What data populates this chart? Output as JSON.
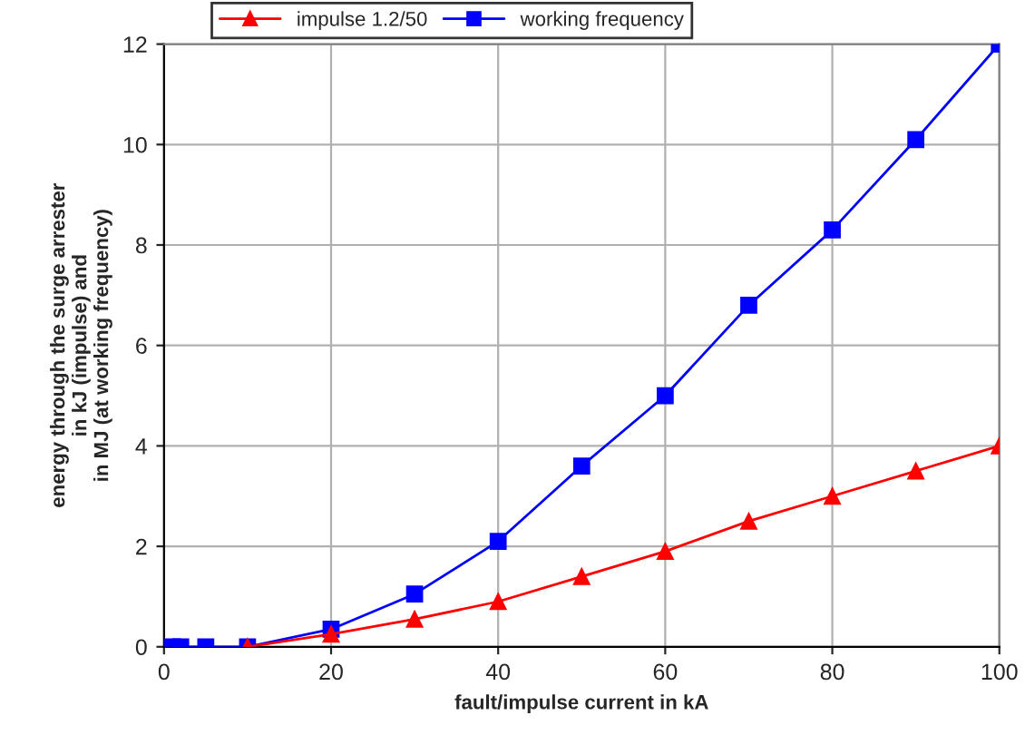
{
  "chart_data": {
    "type": "line",
    "xlabel": "fault/impulse current in kA",
    "ylabel": "energy through the surge arrester\nin kJ (impulse) and\nin MJ (at working frequency)",
    "series": [
      {
        "name": "impulse 1.2/50",
        "color": "#ff0000",
        "marker": "triangle",
        "x": [
          10,
          20,
          30,
          40,
          50,
          60,
          70,
          80,
          90,
          100
        ],
        "values": [
          0,
          0.25,
          0.55,
          0.9,
          1.4,
          1.9,
          2.5,
          3.0,
          3.5,
          4.0
        ]
      },
      {
        "name": "working frequency",
        "color": "#0000ff",
        "marker": "square",
        "x": [
          1,
          2,
          5,
          10,
          20,
          30,
          40,
          50,
          60,
          70,
          80,
          90,
          100
        ],
        "values": [
          0,
          0,
          0,
          0,
          0.35,
          1.05,
          2.1,
          3.6,
          5.0,
          6.8,
          8.3,
          10.1,
          12.0
        ]
      }
    ],
    "xlim": [
      0,
      100
    ],
    "xticks": [
      0,
      20,
      40,
      60,
      80,
      100
    ],
    "ylim": [
      0,
      12
    ],
    "yticks": [
      0,
      2,
      4,
      6,
      8,
      10,
      12
    ],
    "grid": true,
    "legend": "top left",
    "line_style": "solid"
  }
}
